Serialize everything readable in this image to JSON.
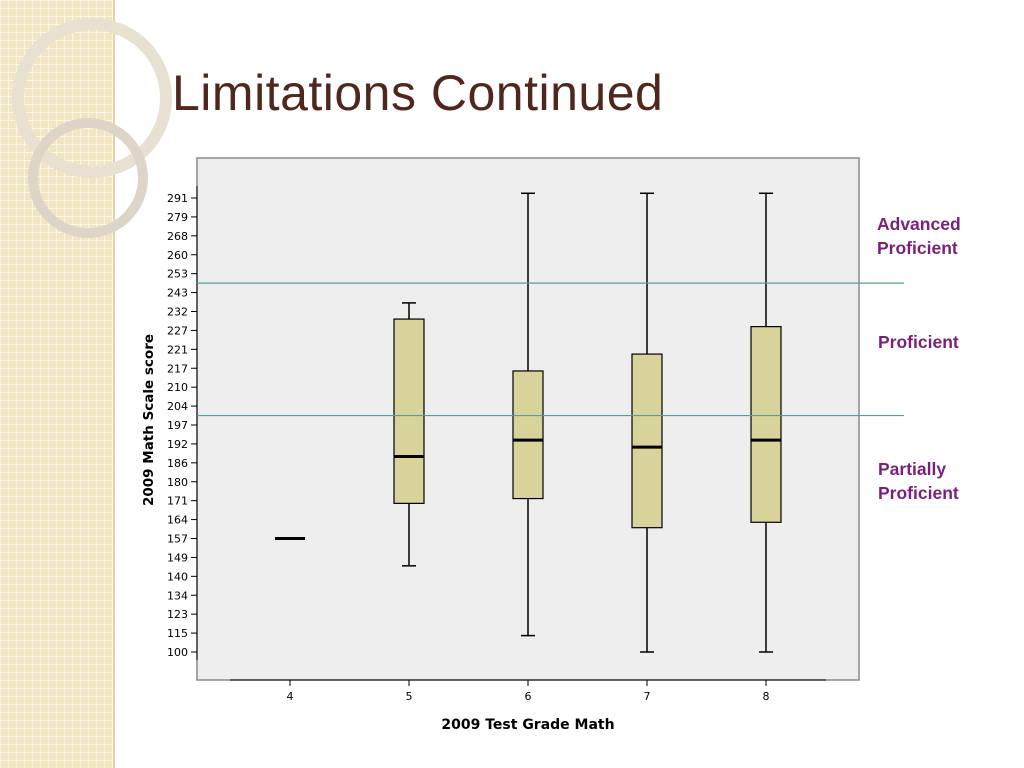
{
  "slide": {
    "title": "Limitations Continued",
    "colors": {
      "title": "#4f271c",
      "band_label": "#7a1f7a",
      "cutoff_line": "#4aa3a3",
      "box_fill": "#d8d39a",
      "plot_bg": "#eeeeee"
    }
  },
  "bands": {
    "advanced": {
      "line1": "Advanced",
      "line2": "Proficient"
    },
    "proficient": {
      "line1": "Proficient"
    },
    "partial": {
      "line1": "Partially",
      "line2": "Proficient"
    }
  },
  "chart_data": {
    "type": "boxplot",
    "title": "",
    "xlabel": "2009 Test Grade Math",
    "ylabel": "2009 Math Scale score",
    "categories": [
      "4",
      "5",
      "6",
      "7",
      "8"
    ],
    "y_ticks": [
      "100",
      "115",
      "123",
      "134",
      "140",
      "149",
      "157",
      "164",
      "171",
      "180",
      "186",
      "192",
      "197",
      "204",
      "210",
      "217",
      "221",
      "227",
      "232",
      "243",
      "253",
      "260",
      "268",
      "279",
      "291"
    ],
    "cutoffs": [
      {
        "name": "Advanced Proficient",
        "after_tick": "253",
        "before_tick": "243"
      },
      {
        "name": "Proficient",
        "after_tick": "204",
        "before_tick": "197"
      }
    ],
    "boxes": [
      {
        "grade": "4",
        "min": 157,
        "q1": 157,
        "median": 157,
        "q3": 157,
        "max": 157
      },
      {
        "grade": "5",
        "min": 145,
        "q1": 170,
        "median": 188,
        "q3": 230,
        "max": 237
      },
      {
        "grade": "6",
        "min": 113,
        "q1": 172,
        "median": 193,
        "q3": 216,
        "max": 294
      },
      {
        "grade": "7",
        "min": 100,
        "q1": 161,
        "median": 191,
        "q3": 220,
        "max": 294
      },
      {
        "grade": "8",
        "min": 100,
        "q1": 163,
        "median": 193,
        "q3": 228,
        "max": 294
      }
    ]
  }
}
